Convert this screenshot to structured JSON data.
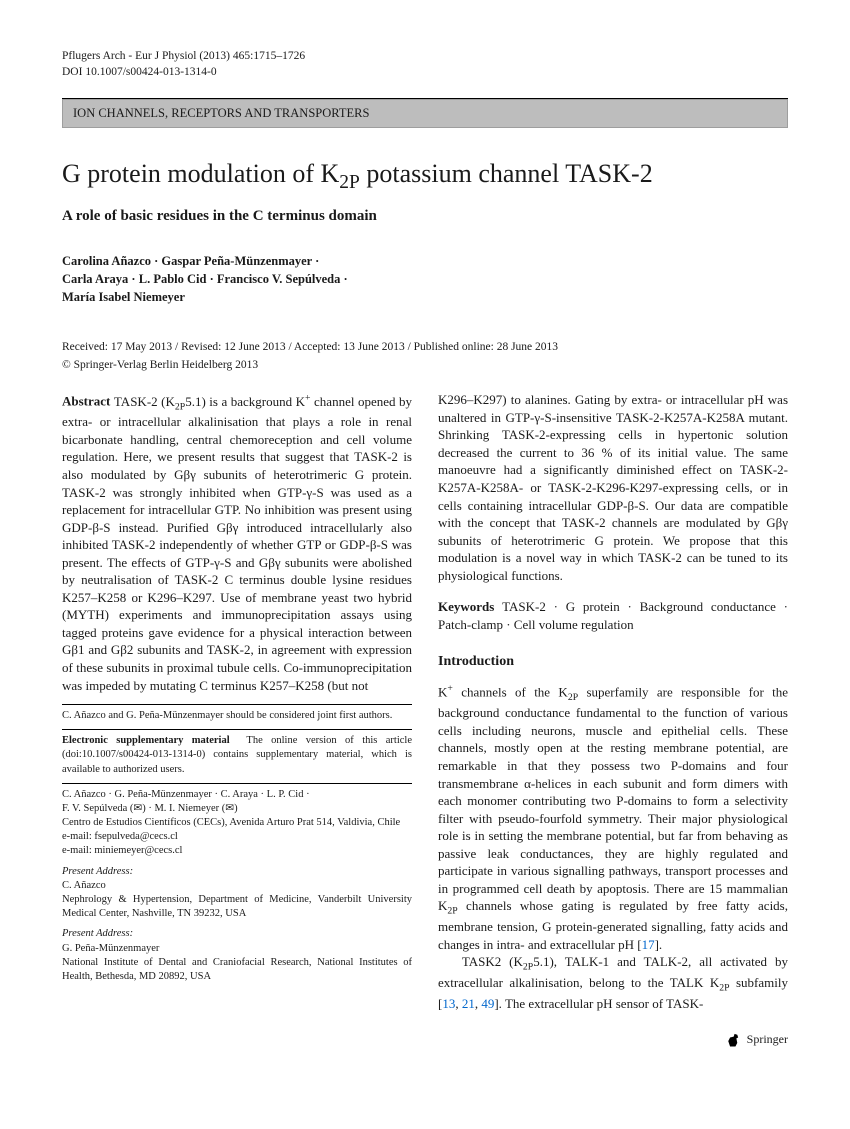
{
  "header": {
    "journal_line": "Pflugers Arch - Eur J Physiol (2013) 465:1715–1726",
    "doi_line": "DOI 10.1007/s00424-013-1314-0"
  },
  "category": "ION CHANNELS, RECEPTORS AND TRANSPORTERS",
  "title_html": "G protein modulation of K<sub>2P</sub> potassium channel TASK-2",
  "subtitle": "A role of basic residues in the C terminus domain",
  "authors_html": "Carolina Añazco · Gaspar Peña-Münzenmayer ·<br>Carla Araya · L. Pablo Cid · Francisco V. Sepúlveda ·<br>María Isabel Niemeyer",
  "dates": "Received: 17 May 2013 / Revised: 12 June 2013 / Accepted: 13 June 2013 / Published online: 28 June 2013",
  "copyright": "© Springer-Verlag Berlin Heidelberg 2013",
  "abstract_label": "Abstract",
  "abstract_left_html": "TASK-2 (K<sub>2P</sub>5.1) is a background K<sup>+</sup> channel opened by extra- or intracellular alkalinisation that plays a role in renal bicarbonate handling, central chemoreception and cell volume regulation. Here, we present results that suggest that TASK-2 is also modulated by Gβγ subunits of heterotrimeric G protein. TASK-2 was strongly inhibited when GTP-γ-S was used as a replacement for intracellular GTP. No inhibition was present using GDP-β-S instead. Purified Gβγ introduced intracellularly also inhibited TASK-2 independently of whether GTP or GDP-β-S was present. The effects of GTP-γ-S and Gβγ subunits were abolished by neutralisation of TASK-2 C terminus double lysine residues K257–K258 or K296–K297. Use of membrane yeast two hybrid (MYTH) experiments and immunoprecipitation assays using tagged proteins gave evidence for a physical interaction between Gβ1 and Gβ2 subunits and TASK-2, in agreement with expression of these subunits in proximal tubule cells. Co-immunoprecipitation was impeded by mutating C terminus K257–K258 (but not",
  "abstract_right_html": "K296–K297) to alanines. Gating by extra- or intracellular pH was unaltered in GTP-γ-S-insensitive TASK-2-K257A-K258A mutant. Shrinking TASK-2-expressing cells in hypertonic solution decreased the current to 36 % of its initial value. The same manoeuvre had a significantly diminished effect on TASK-2-K257A-K258A- or TASK-2-K296-K297-expressing cells, or in cells containing intracellular GDP-β-S. Our data are compatible with the concept that TASK-2 channels are modulated by Gβγ subunits of heterotrimeric G protein. We propose that this modulation is a novel way in which TASK-2 can be tuned to its physiological functions.",
  "keywords_label": "Keywords",
  "keywords": "TASK-2 · G protein · Background conductance · Patch-clamp · Cell volume regulation",
  "intro_heading": "Introduction",
  "intro_html": "K<sup>+</sup> channels of the K<sub>2P</sub> superfamily are responsible for the background conductance fundamental to the function of various cells including neurons, muscle and epithelial cells. These channels, mostly open at the resting membrane potential, are remarkable in that they possess two P-domains and four transmembrane α-helices in each subunit and form dimers with each monomer contributing two P-domains to form a selectivity filter with pseudo-fourfold symmetry. Their major physiological role is in setting the membrane potential, but far from behaving as passive leak conductances, they are highly regulated and participate in various signalling pathways, transport processes and in programmed cell death by apoptosis. There are 15 mammalian K<sub>2P</sub> channels whose gating is regulated by free fatty acids, membrane tension, G protein-generated signalling, fatty acids and changes in intra- and extracellular pH [<span class=\"ref-link\">17</span>].<br>&nbsp;&nbsp;&nbsp;TASK2 (K<sub>2P</sub>5.1), TALK-1 and TALK-2, all activated by extracellular alkalinisation, belong to the TALK K<sub>2P</sub> subfamily [<span class=\"ref-link\">13</span>, <span class=\"ref-link\">21</span>, <span class=\"ref-link\">49</span>]. The extracellular pH sensor of TASK-",
  "footnotes": {
    "joint_first": "C. Añazco and G. Peña-Münzenmayer should be considered joint first authors.",
    "esm_html": "<b>Electronic supplementary material</b>&nbsp;&nbsp;The online version of this article (doi:10.1007/s00424-013-1314-0) contains supplementary material, which is available to authorized users.",
    "affil_names": "C. Añazco · G. Peña-Münzenmayer · C. Araya · L. P. Cid ·",
    "affil_corr": "F. V. Sepúlveda (✉) · M. I. Niemeyer (✉)",
    "affil_inst": "Centro de Estudios Científicos (CECs), Avenida Arturo Prat 514, Valdivia, Chile",
    "email1": "e-mail: fsepulveda@cecs.cl",
    "email2": "e-mail: miniemeyer@cecs.cl",
    "present1_label": "Present Address:",
    "present1_name": "C. Añazco",
    "present1_addr": "Nephrology & Hypertension, Department of Medicine, Vanderbilt University Medical Center, Nashville, TN 39232, USA",
    "present2_label": "Present Address:",
    "present2_name": "G. Peña-Münzenmayer",
    "present2_addr": "National Institute of Dental and Craniofacial Research, National Institutes of Health, Bethesda, MD 20892, USA"
  },
  "publisher": "Springer"
}
